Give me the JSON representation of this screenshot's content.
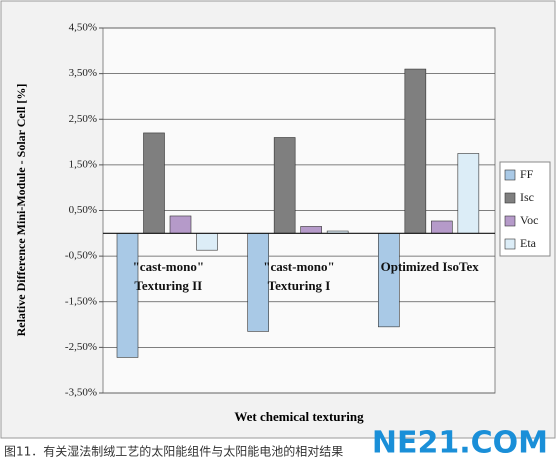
{
  "chart_data": {
    "type": "bar",
    "y_label": "Relative Difference Mini-Module - Solar Cell [%]",
    "x_label": "Wet chemical texturing",
    "caption": "图11．有关湿法制绒工艺的太阳能组件与太阳能电池的相对结果",
    "watermark": "NE21.COM",
    "categories": [
      "\"cast-mono\"\nTexturing II",
      "\"cast-mono\"\nTexturing I",
      "Optimized IsoTex"
    ],
    "series": [
      {
        "name": "FF",
        "color": "#a9c9e6",
        "values": [
          -2.72,
          -2.15,
          -2.05
        ]
      },
      {
        "name": "Isc",
        "color": "#7f7f7f",
        "values": [
          2.2,
          2.1,
          3.6
        ]
      },
      {
        "name": "Voc",
        "color": "#b59ac9",
        "values": [
          0.38,
          0.15,
          0.27
        ]
      },
      {
        "name": "Eta",
        "color": "#dcedf7",
        "values": [
          -0.37,
          0.05,
          1.75
        ]
      }
    ],
    "ylim": [
      -3.5,
      4.5
    ],
    "yticks": [
      {
        "value": 4.5,
        "label": "4,50%"
      },
      {
        "value": 3.5,
        "label": "3,50%"
      },
      {
        "value": 2.5,
        "label": "2,50%"
      },
      {
        "value": 1.5,
        "label": "1,50%"
      },
      {
        "value": 0.5,
        "label": "0,50%"
      },
      {
        "value": -0.5,
        "label": "-0,50%"
      },
      {
        "value": -1.5,
        "label": "-1,50%"
      },
      {
        "value": -2.5,
        "label": "-2,50%"
      },
      {
        "value": -3.5,
        "label": "-3,50%"
      }
    ],
    "grid": true,
    "legend": "right"
  }
}
